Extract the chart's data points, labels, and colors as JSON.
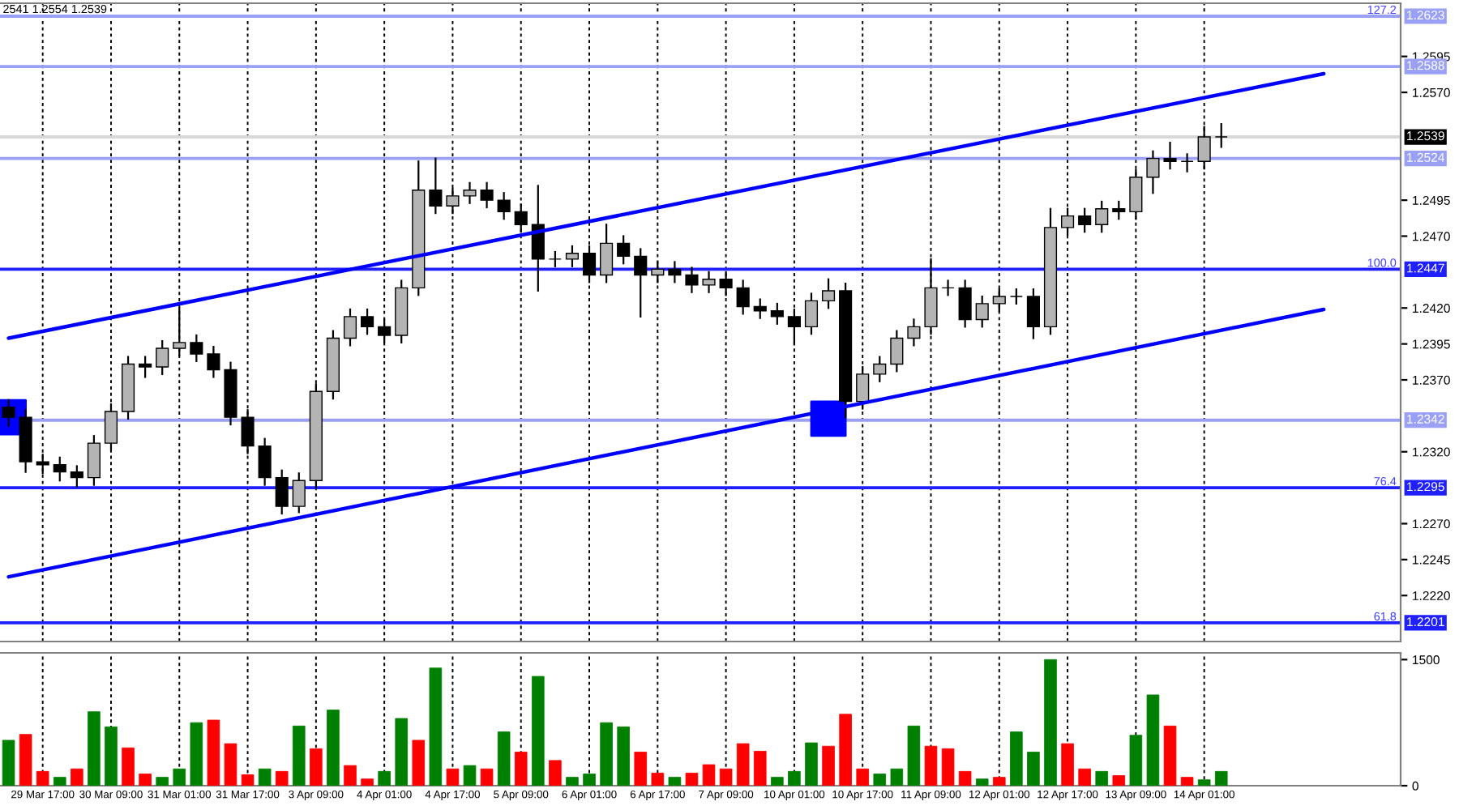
{
  "chart_data": [
    {
      "type": "candlestick",
      "categories": [
        null,
        null,
        null,
        null,
        null,
        null,
        null,
        null,
        null,
        null,
        null,
        null,
        null,
        null,
        null,
        null,
        null,
        null,
        null,
        null,
        null,
        null,
        null,
        null,
        null,
        null,
        null,
        null,
        null,
        null,
        null,
        null,
        null,
        null,
        null,
        null,
        null,
        null,
        null,
        null,
        null,
        null,
        null,
        null,
        null,
        null,
        null,
        null,
        null,
        null,
        null,
        null,
        null,
        null,
        null,
        null,
        null,
        null,
        null,
        null,
        null,
        null,
        null,
        null,
        null,
        null,
        null,
        null,
        null,
        null,
        null,
        null,
        null,
        null,
        null,
        null,
        null,
        null,
        null,
        null,
        null,
        null
      ],
      "ohlc": [
        [
          1.2351,
          1.2356,
          1.2338,
          1.2344
        ],
        [
          1.2344,
          1.2349,
          1.2306,
          1.2313
        ],
        [
          1.2313,
          1.2318,
          1.2305,
          1.2311
        ],
        [
          1.2311,
          1.2316,
          1.23,
          1.2306
        ],
        [
          1.2306,
          1.231,
          1.2296,
          1.2302
        ],
        [
          1.2302,
          1.2331,
          1.2297,
          1.2326
        ],
        [
          1.2326,
          1.2353,
          1.2321,
          1.2348
        ],
        [
          1.2348,
          1.2386,
          1.2343,
          1.2381
        ],
        [
          1.2381,
          1.2386,
          1.2372,
          1.2379
        ],
        [
          1.2379,
          1.2397,
          1.2374,
          1.2392
        ],
        [
          1.2392,
          1.242,
          1.2387,
          1.2396
        ],
        [
          1.2396,
          1.2401,
          1.2383,
          1.2388
        ],
        [
          1.2388,
          1.2393,
          1.2372,
          1.2377
        ],
        [
          1.2377,
          1.2382,
          1.2339,
          1.2344
        ],
        [
          1.2344,
          1.2349,
          1.2319,
          1.2324
        ],
        [
          1.2324,
          1.2329,
          1.2297,
          1.2302
        ],
        [
          1.2302,
          1.2307,
          1.2277,
          1.2282
        ],
        [
          1.2282,
          1.2305,
          1.2278,
          1.23
        ],
        [
          1.23,
          1.2367,
          1.2295,
          1.2362
        ],
        [
          1.2362,
          1.2404,
          1.2357,
          1.2399
        ],
        [
          1.2399,
          1.2419,
          1.2394,
          1.2414
        ],
        [
          1.2414,
          1.2419,
          1.2402,
          1.2407
        ],
        [
          1.2407,
          1.2412,
          1.2396,
          1.2401
        ],
        [
          1.2401,
          1.2439,
          1.2396,
          1.2434
        ],
        [
          1.2434,
          1.2522,
          1.2429,
          1.2502
        ],
        [
          1.2502,
          1.2524,
          1.2486,
          1.2491
        ],
        [
          1.2491,
          1.2503,
          1.2486,
          1.2498
        ],
        [
          1.2498,
          1.2507,
          1.2493,
          1.2502
        ],
        [
          1.2502,
          1.2507,
          1.249,
          1.2495
        ],
        [
          1.2495,
          1.25,
          1.2482,
          1.2487
        ],
        [
          1.2487,
          1.2492,
          1.2473,
          1.2478
        ],
        [
          1.2478,
          1.2505,
          1.2432,
          1.2454
        ],
        [
          1.2454,
          1.2459,
          1.2449,
          1.2454
        ],
        [
          1.2454,
          1.2463,
          1.2449,
          1.2458
        ],
        [
          1.2458,
          1.2463,
          1.2438,
          1.2443
        ],
        [
          1.2443,
          1.2478,
          1.2438,
          1.2465
        ],
        [
          1.2465,
          1.247,
          1.2451,
          1.2456
        ],
        [
          1.2456,
          1.2461,
          1.2414,
          1.2443
        ],
        [
          1.2443,
          1.2452,
          1.2438,
          1.2447
        ],
        [
          1.2447,
          1.2452,
          1.2438,
          1.2443
        ],
        [
          1.2443,
          1.2448,
          1.2431,
          1.2436
        ],
        [
          1.2436,
          1.2445,
          1.2431,
          1.244
        ],
        [
          1.244,
          1.2445,
          1.2429,
          1.2434
        ],
        [
          1.2434,
          1.2439,
          1.2416,
          1.2421
        ],
        [
          1.2421,
          1.2426,
          1.2413,
          1.2418
        ],
        [
          1.2418,
          1.2423,
          1.2409,
          1.2414
        ],
        [
          1.2414,
          1.2419,
          1.2395,
          1.2407
        ],
        [
          1.2407,
          1.243,
          1.2402,
          1.2425
        ],
        [
          1.2425,
          1.244,
          1.242,
          1.2432
        ],
        [
          1.2432,
          1.2437,
          1.2344,
          1.2355
        ],
        [
          1.2355,
          1.2379,
          1.235,
          1.2374
        ],
        [
          1.2374,
          1.2386,
          1.2369,
          1.2381
        ],
        [
          1.2381,
          1.2404,
          1.2376,
          1.2399
        ],
        [
          1.2399,
          1.2412,
          1.2394,
          1.2407
        ],
        [
          1.2407,
          1.2454,
          1.2402,
          1.2434
        ],
        [
          1.2434,
          1.2439,
          1.2429,
          1.2434
        ],
        [
          1.2434,
          1.2439,
          1.2407,
          1.2412
        ],
        [
          1.2412,
          1.2428,
          1.2407,
          1.2423
        ],
        [
          1.2423,
          1.2433,
          1.2418,
          1.2428
        ],
        [
          1.2428,
          1.2433,
          1.2423,
          1.2428
        ],
        [
          1.2428,
          1.2433,
          1.2399,
          1.2407
        ],
        [
          1.2407,
          1.2489,
          1.2402,
          1.2476
        ],
        [
          1.2476,
          1.2489,
          1.2471,
          1.2484
        ],
        [
          1.2484,
          1.2489,
          1.2473,
          1.2478
        ],
        [
          1.2478,
          1.2494,
          1.2473,
          1.2489
        ],
        [
          1.2489,
          1.2494,
          1.2482,
          1.2487
        ],
        [
          1.2487,
          1.2516,
          1.2482,
          1.2511
        ],
        [
          1.2511,
          1.2529,
          1.25,
          1.2524
        ],
        [
          1.2524,
          1.2535,
          1.2517,
          1.2522
        ],
        [
          1.2522,
          1.2527,
          1.2515,
          1.2522
        ],
        [
          1.2522,
          1.2546,
          1.2517,
          1.2539
        ],
        [
          1.2539,
          1.2548,
          1.2532,
          1.2539
        ],
        null,
        null,
        null,
        null,
        null,
        null,
        null,
        null,
        null,
        null
      ],
      "series": [
        {
          "type": "line",
          "color": "#0000ff",
          "values": [
            1.2399,
            null,
            null,
            null,
            null,
            null,
            null,
            null,
            null,
            null,
            null,
            null,
            null,
            null,
            null,
            null,
            null,
            null,
            null,
            null,
            null,
            null,
            null,
            null,
            null,
            null,
            null,
            null,
            null,
            null,
            null,
            null,
            null,
            null,
            null,
            null,
            null,
            null,
            null,
            null,
            null,
            null,
            null,
            null,
            null,
            null,
            null,
            null,
            null,
            null,
            null,
            null,
            null,
            null,
            null,
            null,
            null,
            null,
            null,
            null,
            null,
            null,
            null,
            null,
            null,
            null,
            null,
            null,
            null,
            null,
            null,
            null,
            null,
            null,
            null,
            null,
            null,
            1.2583,
            null,
            null,
            null,
            null
          ]
        },
        {
          "type": "line",
          "color": "#0000ff",
          "values": [
            1.2233,
            null,
            null,
            null,
            null,
            null,
            null,
            null,
            null,
            null,
            null,
            null,
            null,
            null,
            null,
            null,
            null,
            null,
            null,
            null,
            null,
            null,
            null,
            null,
            null,
            null,
            null,
            null,
            null,
            null,
            null,
            null,
            null,
            null,
            null,
            null,
            null,
            null,
            null,
            null,
            null,
            null,
            null,
            null,
            null,
            null,
            null,
            null,
            null,
            null,
            null,
            null,
            null,
            null,
            null,
            null,
            null,
            null,
            null,
            null,
            null,
            null,
            null,
            null,
            null,
            null,
            null,
            null,
            null,
            null,
            null,
            null,
            null,
            null,
            null,
            null,
            null,
            1.2419,
            null,
            null,
            null,
            null
          ]
        },
        {
          "type": "scatter",
          "marker": "square",
          "color": "#0000ff",
          "values": [
            1.2344,
            null,
            null,
            null,
            null,
            null,
            null,
            null,
            null,
            null,
            null,
            null,
            null,
            null,
            null,
            null,
            null,
            null,
            null,
            null,
            null,
            null,
            null,
            null,
            null,
            null,
            null,
            null,
            null,
            null,
            null,
            null,
            null,
            null,
            null,
            null,
            null,
            null,
            null,
            null,
            null,
            null,
            null,
            null,
            null,
            null,
            null,
            null,
            1.2343,
            null,
            null,
            null,
            null,
            null,
            null,
            null,
            null,
            null,
            null,
            null,
            null,
            null,
            null,
            null,
            null,
            null,
            null,
            null,
            null,
            null,
            null,
            null,
            null,
            null,
            null,
            null,
            null,
            null,
            null,
            null,
            null,
            null
          ]
        }
      ],
      "ylim": [
        1.2188,
        1.2632
      ],
      "yticks": [
        1.2595,
        {
          "value": 1.257,
          "label": "1.2570"
        },
        1.2495,
        {
          "value": 1.247,
          "label": "1.2470"
        },
        {
          "value": 1.242,
          "label": "1.2420"
        },
        1.2395,
        {
          "value": 1.237,
          "label": "1.2370"
        },
        {
          "value": 1.232,
          "label": "1.2320"
        },
        {
          "value": 1.227,
          "label": "1.2270"
        },
        1.2245,
        {
          "value": 1.222,
          "label": "1.2220"
        }
      ],
      "tick_labels": "y",
      "grid": "x",
      "ref_lines": [
        {
          "axis": "y",
          "value": 1.2623,
          "label": "1.2623",
          "color": "#9aa0f5"
        },
        {
          "axis": "y",
          "value": 1.2588,
          "label": "1.2588",
          "color": "#9aa0f5"
        },
        {
          "axis": "y",
          "value": 1.2539,
          "label": "1.2539",
          "color": "#d8d8d8"
        },
        {
          "axis": "y",
          "value": 1.2524,
          "label": "1.2524",
          "color": "#9aa0f5"
        },
        {
          "axis": "y",
          "value": 1.2447,
          "label": "1.2447",
          "color": "#1f1fff"
        },
        {
          "axis": "y",
          "value": 1.2342,
          "label": "1.2342",
          "color": "#9aa0f5"
        },
        {
          "axis": "y",
          "value": 1.2295,
          "label": "1.2295",
          "color": "#1f1fff"
        },
        {
          "axis": "y",
          "value": 1.2201,
          "label": "1.2201",
          "color": "#1f1fff"
        }
      ],
      "annotations": [
        "2541 1.2554 1.2539",
        {
          "text": "127.2",
          "y": 1.2623
        },
        {
          "text": "100.0",
          "y": 1.2447
        },
        {
          "text": "76.4",
          "y": 1.2295
        },
        {
          "text": "61.8",
          "y": 1.2201
        }
      ]
    },
    {
      "type": "bar",
      "categories": [
        null,
        null,
        "29 Mar 17:00",
        null,
        null,
        null,
        "30 Mar 09:00",
        null,
        null,
        null,
        "31 Mar 01:00",
        null,
        null,
        null,
        "31 Mar 17:00",
        null,
        null,
        null,
        "3 Apr 09:00",
        null,
        null,
        null,
        "4 Apr 01:00",
        null,
        null,
        null,
        "4 Apr 17:00",
        null,
        null,
        null,
        "5 Apr 09:00",
        null,
        null,
        null,
        "6 Apr 01:00",
        null,
        null,
        null,
        "6 Apr 17:00",
        null,
        null,
        null,
        "7 Apr 09:00",
        null,
        null,
        null,
        "10 Apr 01:00",
        null,
        null,
        null,
        "10 Apr 17:00",
        null,
        null,
        null,
        "11 Apr 09:00",
        null,
        null,
        null,
        "12 Apr 01:00",
        null,
        null,
        null,
        "12 Apr 17:00",
        null,
        null,
        null,
        "13 Apr 09:00",
        null,
        null,
        null,
        "14 Apr 01:00",
        null,
        null,
        null,
        null,
        null,
        null,
        null,
        null,
        null,
        null,
        null
      ],
      "values": [
        540,
        610,
        170,
        100,
        200,
        880,
        700,
        450,
        140,
        100,
        200,
        750,
        780,
        500,
        130,
        200,
        170,
        710,
        440,
        900,
        240,
        80,
        170,
        800,
        540,
        1400,
        200,
        240,
        200,
        640,
        400,
        1300,
        300,
        100,
        140,
        750,
        700,
        400,
        150,
        100,
        150,
        250,
        200,
        500,
        410,
        100,
        170,
        510,
        470,
        850,
        200,
        140,
        200,
        710,
        470,
        440,
        170,
        80,
        100,
        640,
        400,
        1500,
        500,
        200,
        170,
        120,
        600,
        1080,
        710,
        100,
        70,
        170,
        null,
        null,
        null,
        null,
        null,
        null,
        null,
        null,
        null,
        null
      ],
      "colors": [
        "#008000",
        "#ff0000",
        "#ff0000",
        "#008000",
        "#ff0000",
        "#008000",
        "#008000",
        "#ff0000",
        "#ff0000",
        "#008000",
        "#008000",
        "#008000",
        "#ff0000",
        "#ff0000",
        "#ff0000",
        "#008000",
        "#ff0000",
        "#008000",
        "#ff0000",
        "#008000",
        "#ff0000",
        "#ff0000",
        "#008000",
        "#008000",
        "#ff0000",
        "#008000",
        "#ff0000",
        "#008000",
        "#ff0000",
        "#008000",
        "#ff0000",
        "#008000",
        "#ff0000",
        "#008000",
        "#008000",
        "#008000",
        "#008000",
        "#ff0000",
        "#ff0000",
        "#008000",
        "#ff0000",
        "#ff0000",
        "#ff0000",
        "#ff0000",
        "#ff0000",
        "#008000",
        "#008000",
        "#008000",
        "#ff0000",
        "#ff0000",
        "#ff0000",
        "#008000",
        "#008000",
        "#008000",
        "#ff0000",
        "#ff0000",
        "#ff0000",
        "#008000",
        "#ff0000",
        "#008000",
        "#008000",
        "#008000",
        "#ff0000",
        "#ff0000",
        "#008000",
        "#ff0000",
        "#008000",
        "#008000",
        "#ff0000",
        "#ff0000",
        "#008000",
        "#008000",
        null,
        null,
        null,
        null,
        null,
        null,
        null,
        null,
        null,
        null
      ],
      "ylim": [
        0,
        1580
      ],
      "yticks": [
        0,
        1500
      ],
      "grid": "x"
    }
  ]
}
